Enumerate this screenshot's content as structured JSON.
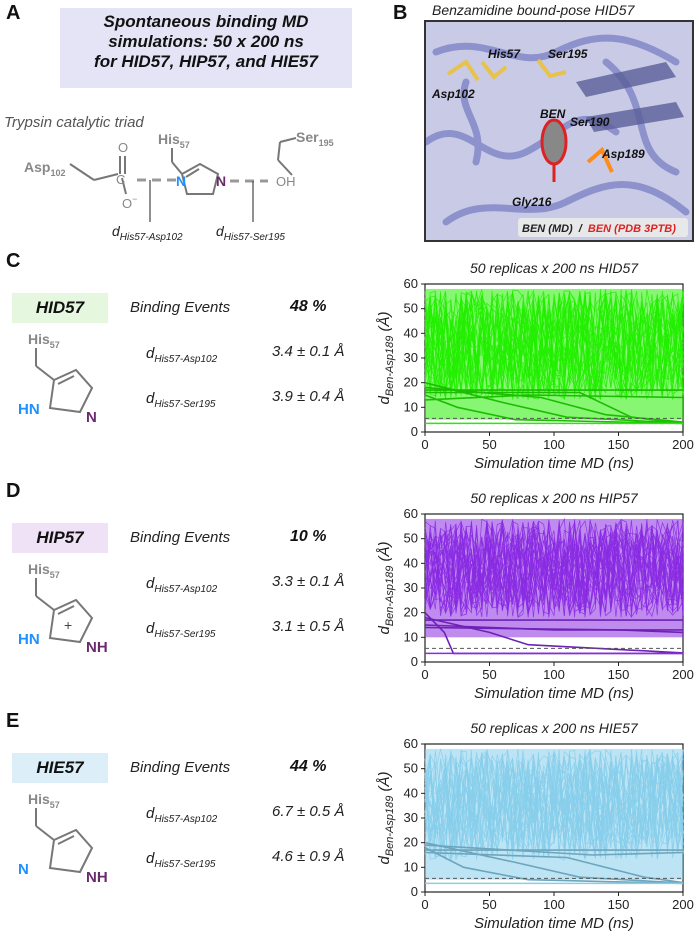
{
  "panels": {
    "A": {
      "letter": "A",
      "title_lines": [
        "Spontaneous binding MD",
        "simulations: 50 x 200 ns",
        "for HID57, HIP57, and HIE57"
      ],
      "subtitle": "Trypsin catalytic triad",
      "labels": {
        "his": "His",
        "his_sub": "57",
        "asp": "Asp",
        "asp_sub": "102",
        "ser": "Ser",
        "ser_sub": "195",
        "o": "O",
        "o_minus": "O",
        "c": "C",
        "n1": "N",
        "n2": "N",
        "oh": "OH",
        "d1": "d",
        "d1_sub": "His57-Asp102",
        "d2": "d",
        "d2_sub": "His57-Ser195"
      }
    },
    "B": {
      "letter": "B",
      "title": "Benzamidine bound-pose HID57",
      "residues": [
        "His57",
        "Ser195",
        "Asp102",
        "BEN",
        "Ser190",
        "Asp189",
        "Gly216"
      ],
      "legend_md": "BEN (MD)",
      "legend_sep": "/",
      "legend_pdb": "BEN (PDB 3PTB)"
    }
  },
  "states": [
    {
      "letter": "C",
      "name": "HID57",
      "box_color": "#e6f7df",
      "color": "#22ee00",
      "binding_label": "Binding Events",
      "binding_pct": "48 %",
      "d_sym": "d",
      "d1_sub": "His57-Asp102",
      "d1_val": "3.4 ± 0.1 Å",
      "d2_sub": "His57-Ser195",
      "d2_val": "3.9 ± 0.4 Å",
      "ring": {
        "left": "HN",
        "right": "N",
        "his": "His",
        "his_sub": "57"
      },
      "plot_title": "50 replicas x 200 ns HID57"
    },
    {
      "letter": "D",
      "name": "HIP57",
      "box_color": "#efe2f6",
      "color": "#8a2be2",
      "binding_label": "Binding Events",
      "binding_pct": "10 %",
      "d_sym": "d",
      "d1_sub": "His57-Asp102",
      "d1_val": "3.3 ± 0.1 Å",
      "d2_sub": "His57-Ser195",
      "d2_val": "3.1 ± 0.5 Å",
      "ring": {
        "left": "HN",
        "right": "NH",
        "his": "His",
        "his_sub": "57",
        "charge": "+"
      },
      "plot_title": "50 replicas x 200 ns HIP57"
    },
    {
      "letter": "E",
      "name": "HIE57",
      "box_color": "#dcefF8",
      "color": "#87ceeb",
      "binding_label": "Binding Events",
      "binding_pct": "44 %",
      "d_sym": "d",
      "d1_sub": "His57-Asp102",
      "d1_val": "6.7 ± 0.5 Å",
      "d2_sub": "His57-Ser195",
      "d2_val": "4.6 ± 0.9 Å",
      "ring": {
        "left": "N",
        "right": "NH",
        "his": "His",
        "his_sub": "57"
      },
      "plot_title": "50 replicas x 200 ns HIE57"
    }
  ],
  "chart_data": [
    {
      "type": "line",
      "title": "50 replicas x 200 ns HID57",
      "xlabel": "Simulation time MD (ns)",
      "ylabel_main": "d",
      "ylabel_sub": "Ben-Asp189",
      "ylabel_unit": "(Å)",
      "xlim": [
        0,
        200
      ],
      "ylim": [
        0,
        60
      ],
      "xticks": [
        0,
        50,
        100,
        150,
        200
      ],
      "yticks": [
        0,
        10,
        20,
        30,
        40,
        50,
        60
      ],
      "series_color": "#22ee00",
      "band": [
        5,
        58
      ],
      "bound_threshold": 5.5,
      "bound_level": 3.5,
      "bound_lines": [
        {
          "x": [
            0,
            25,
            70,
            200
          ],
          "y": [
            15,
            10,
            5,
            3.5
          ]
        },
        {
          "x": [
            0,
            60,
            110,
            200
          ],
          "y": [
            20,
            12,
            6,
            3.6
          ]
        },
        {
          "x": [
            0,
            90,
            140,
            200
          ],
          "y": [
            18,
            14,
            7,
            4
          ]
        },
        {
          "x": [
            0,
            120,
            160,
            200
          ],
          "y": [
            16,
            16,
            6,
            3.5
          ]
        },
        {
          "x": [
            0,
            30,
            200
          ],
          "y": [
            17,
            17,
            17
          ]
        },
        {
          "x": [
            0,
            80,
            200
          ],
          "y": [
            13,
            15,
            14
          ]
        }
      ]
    },
    {
      "type": "line",
      "title": "50 replicas x 200 ns HIP57",
      "xlabel": "Simulation time MD (ns)",
      "ylabel_main": "d",
      "ylabel_sub": "Ben-Asp189",
      "ylabel_unit": "(Å)",
      "xlim": [
        0,
        200
      ],
      "ylim": [
        0,
        60
      ],
      "xticks": [
        0,
        50,
        100,
        150,
        200
      ],
      "yticks": [
        0,
        10,
        20,
        30,
        40,
        50,
        60
      ],
      "series_color": "#8a2be2",
      "band": [
        10,
        58
      ],
      "bound_threshold": 5.5,
      "bound_level": 3.5,
      "bound_lines": [
        {
          "x": [
            0,
            15,
            22,
            200
          ],
          "y": [
            20,
            12,
            3.5,
            3.5
          ]
        },
        {
          "x": [
            0,
            50,
            80,
            200
          ],
          "y": [
            18,
            12,
            7,
            3.7
          ]
        },
        {
          "x": [
            0,
            100,
            200
          ],
          "y": [
            15,
            13,
            13
          ]
        },
        {
          "x": [
            0,
            60,
            200
          ],
          "y": [
            17,
            17,
            17
          ]
        },
        {
          "x": [
            0,
            150,
            200
          ],
          "y": [
            14,
            13,
            12
          ]
        }
      ]
    },
    {
      "type": "line",
      "title": "50 replicas x 200 ns HIE57",
      "xlabel": "Simulation time MD (ns)",
      "ylabel_main": "d",
      "ylabel_sub": "Ben-Asp189",
      "ylabel_unit": "(Å)",
      "xlim": [
        0,
        200
      ],
      "ylim": [
        0,
        60
      ],
      "xticks": [
        0,
        50,
        100,
        150,
        200
      ],
      "yticks": [
        0,
        10,
        20,
        30,
        40,
        50,
        60
      ],
      "series_color": "#87ceeb",
      "band": [
        5,
        58
      ],
      "bound_threshold": 5.5,
      "bound_level": 3.5,
      "bound_lines": [
        {
          "x": [
            0,
            30,
            80,
            200
          ],
          "y": [
            18,
            10,
            5,
            3.5
          ]
        },
        {
          "x": [
            0,
            70,
            120,
            200
          ],
          "y": [
            20,
            12,
            6,
            3.6
          ]
        },
        {
          "x": [
            0,
            110,
            170,
            200
          ],
          "y": [
            16,
            14,
            6,
            3.8
          ]
        },
        {
          "x": [
            0,
            40,
            200
          ],
          "y": [
            17,
            17,
            17
          ]
        },
        {
          "x": [
            0,
            130,
            200
          ],
          "y": [
            19,
            15,
            16
          ]
        }
      ]
    }
  ]
}
